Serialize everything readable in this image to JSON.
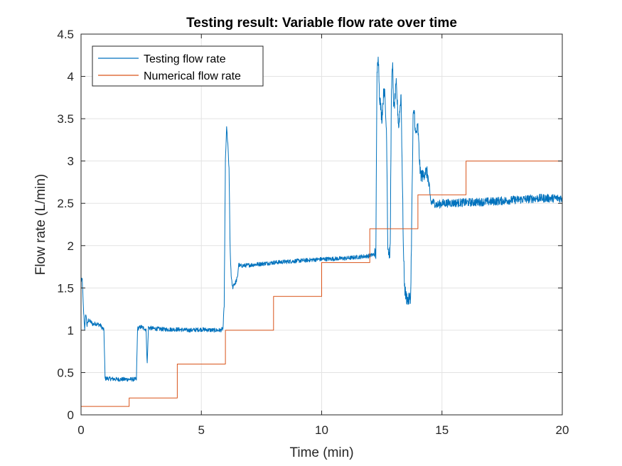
{
  "chart_data": {
    "type": "line",
    "title": "Testing result: Variable flow rate over time",
    "xlabel": "Time (min)",
    "ylabel": "Flow rate (L/min)",
    "xlim": [
      0,
      20
    ],
    "ylim": [
      0,
      4.5
    ],
    "xticks": [
      0,
      5,
      10,
      15,
      20
    ],
    "yticks": [
      0,
      0.5,
      1,
      1.5,
      2,
      2.5,
      3,
      3.5,
      4,
      4.5
    ],
    "xtick_labels": [
      "0",
      "5",
      "10",
      "15",
      "20"
    ],
    "ytick_labels": [
      "0",
      "0.5",
      "1",
      "1.5",
      "2",
      "2.5",
      "3",
      "3.5",
      "4",
      "4.5"
    ],
    "grid": true,
    "legend_position": "top-left",
    "series": [
      {
        "name": "Testing flow rate",
        "color": "#0072BD",
        "style": "noisy",
        "x": [
          0,
          0.05,
          0.1,
          0.15,
          0.2,
          0.25,
          0.3,
          0.4,
          0.5,
          0.6,
          0.8,
          0.95,
          1.0,
          1.1,
          1.5,
          2.0,
          2.3,
          2.35,
          2.5,
          2.7,
          2.75,
          2.8,
          3.0,
          3.5,
          4.0,
          4.5,
          5.0,
          5.5,
          5.8,
          5.9,
          5.95,
          6.0,
          6.05,
          6.1,
          6.15,
          6.2,
          6.25,
          6.3,
          6.35,
          6.4,
          6.5,
          6.55,
          6.6,
          7.0,
          8.0,
          9.0,
          10.0,
          11.0,
          12.0,
          12.2,
          12.25,
          12.3,
          12.35,
          12.4,
          12.5,
          12.6,
          12.7,
          12.75,
          12.8,
          12.85,
          12.9,
          12.95,
          13.0,
          13.1,
          13.2,
          13.3,
          13.4,
          13.45,
          13.5,
          13.6,
          13.7,
          13.8,
          13.85,
          13.9,
          14.0,
          14.05,
          14.1,
          14.2,
          14.3,
          14.4,
          14.5,
          14.55,
          14.6,
          14.7,
          14.8,
          15.0,
          16.0,
          17.0,
          18.0,
          19.0,
          20.0
        ],
        "y": [
          1.58,
          1.6,
          1.25,
          1.02,
          1.2,
          1.05,
          1.12,
          1.1,
          1.07,
          1.08,
          1.06,
          1.0,
          0.43,
          0.43,
          0.42,
          0.42,
          0.42,
          1.02,
          1.04,
          1.01,
          0.6,
          1.03,
          1.02,
          1.01,
          1.01,
          1.0,
          1.01,
          1.0,
          1.0,
          1.02,
          1.3,
          3.0,
          3.4,
          3.2,
          2.9,
          1.9,
          1.6,
          1.5,
          1.55,
          1.55,
          1.62,
          1.78,
          1.76,
          1.77,
          1.8,
          1.82,
          1.84,
          1.85,
          1.88,
          1.9,
          1.9,
          4.0,
          4.3,
          3.8,
          3.5,
          3.9,
          3.3,
          2.0,
          1.9,
          1.95,
          3.9,
          4.1,
          3.6,
          3.9,
          3.4,
          3.8,
          1.9,
          1.5,
          1.4,
          1.35,
          1.4,
          3.5,
          3.6,
          3.3,
          3.4,
          3.1,
          2.85,
          2.82,
          2.88,
          2.85,
          2.6,
          2.5,
          2.52,
          2.5,
          2.48,
          2.5,
          2.51,
          2.52,
          2.54,
          2.56,
          2.56
        ]
      },
      {
        "name": "Numerical flow rate",
        "color": "#D95319",
        "style": "step",
        "x": [
          0,
          2,
          2,
          4,
          4,
          6,
          6,
          8,
          8,
          10,
          10,
          12,
          12,
          14,
          14,
          16,
          16,
          20
        ],
        "y": [
          0.1,
          0.1,
          0.2,
          0.2,
          0.6,
          0.6,
          1.0,
          1.0,
          1.4,
          1.4,
          1.8,
          1.8,
          2.2,
          2.2,
          2.6,
          2.6,
          3.0,
          3.0
        ]
      }
    ]
  }
}
